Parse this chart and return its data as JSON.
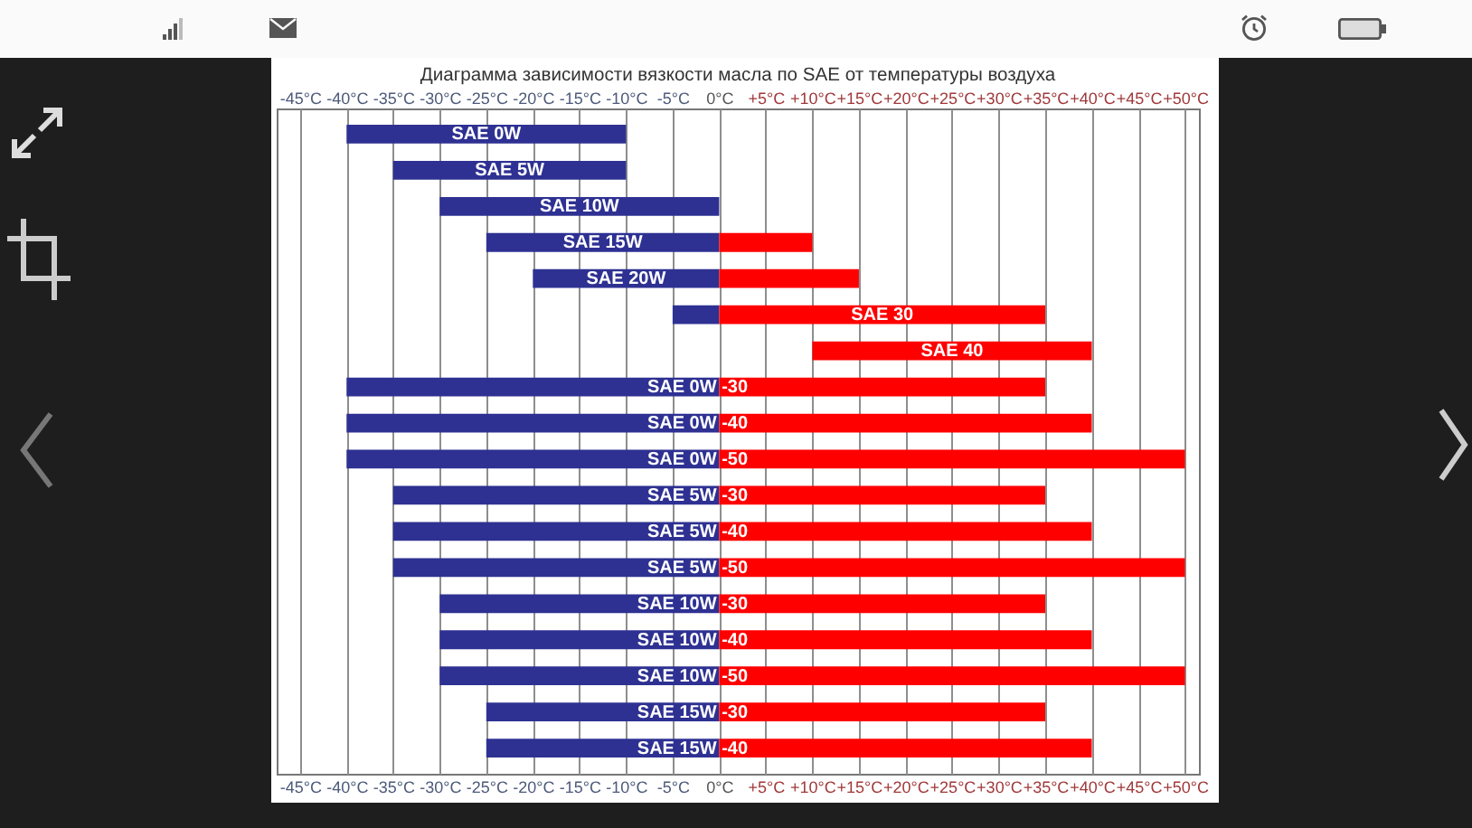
{
  "chart_data": {
    "type": "bar",
    "title": "Диаграмма зависимости вязкости масла по SAE от температуры воздуха",
    "orientation": "horizontal",
    "categories": [
      "SAE 0W",
      "SAE 5W",
      "SAE 10W",
      "SAE 15W",
      "SAE 20W",
      "SAE 30",
      "SAE 40",
      "SAE 0W -30",
      "SAE 0W -40",
      "SAE 0W -50",
      "SAE 5W -30",
      "SAE 5W -40",
      "SAE 5W -50",
      "SAE 10W -30",
      "SAE 10W -40",
      "SAE 10W -50",
      "SAE 15W -30",
      "SAE 15W -40"
    ],
    "series": [
      {
        "color": "#2e3192",
        "base": [
          -40,
          -35,
          -30,
          -25,
          -20,
          -5,
          null,
          -40,
          -40,
          -40,
          -35,
          -35,
          -35,
          -30,
          -30,
          -30,
          -25,
          -25
        ],
        "values": [
          30,
          25,
          30,
          25,
          20,
          5,
          null,
          40,
          40,
          40,
          35,
          35,
          35,
          30,
          30,
          30,
          25,
          25
        ]
      },
      {
        "color": "#ff0000",
        "base": [
          null,
          null,
          null,
          0,
          0,
          0,
          10,
          0,
          0,
          0,
          0,
          0,
          0,
          0,
          0,
          0,
          0,
          0
        ],
        "values": [
          null,
          null,
          null,
          10,
          15,
          35,
          30,
          35,
          40,
          50,
          35,
          40,
          50,
          35,
          40,
          50,
          35,
          40
        ]
      }
    ],
    "xlim": [
      -47.5,
      51.5
    ],
    "xticks": [
      {
        "value": -45,
        "label": "-45°C"
      },
      {
        "value": -40,
        "label": "-40°C"
      },
      {
        "value": -35,
        "label": "-35°C"
      },
      {
        "value": -30,
        "label": "-30°C"
      },
      {
        "value": -25,
        "label": "-25°C"
      },
      {
        "value": -20,
        "label": "-20°C"
      },
      {
        "value": -15,
        "label": "-15°C"
      },
      {
        "value": -10,
        "label": "-10°C"
      },
      {
        "value": -5,
        "label": "-5°C"
      },
      {
        "value": 0,
        "label": "0°C"
      },
      {
        "value": 5,
        "label": "+5°C"
      },
      {
        "value": 10,
        "label": "+10°C"
      },
      {
        "value": 15,
        "label": "+15°C"
      },
      {
        "value": 20,
        "label": "+20°C"
      },
      {
        "value": 25,
        "label": "+25°C"
      },
      {
        "value": 30,
        "label": "+30°C"
      },
      {
        "value": 35,
        "label": "+35°C"
      },
      {
        "value": 40,
        "label": "+40°C"
      },
      {
        "value": 45,
        "label": "+45°C"
      },
      {
        "value": 50,
        "label": "+50°C"
      }
    ],
    "x2lim": [
      -47.5,
      51.5
    ],
    "x2ticks": [
      {
        "value": -45,
        "label": "-45°C"
      },
      {
        "value": -40,
        "label": "-40°C"
      },
      {
        "value": -35,
        "label": "-35°C"
      },
      {
        "value": -30,
        "label": "-30°C"
      },
      {
        "value": -25,
        "label": "-25°C"
      },
      {
        "value": -20,
        "label": "-20°C"
      },
      {
        "value": -15,
        "label": "-15°C"
      },
      {
        "value": -10,
        "label": "-10°C"
      },
      {
        "value": -5,
        "label": "-5°C"
      },
      {
        "value": 0,
        "label": "0°C"
      },
      {
        "value": 5,
        "label": "+5°C"
      },
      {
        "value": 10,
        "label": "+10°C"
      },
      {
        "value": 15,
        "label": "+15°C"
      },
      {
        "value": 20,
        "label": "+20°C"
      },
      {
        "value": 25,
        "label": "+25°C"
      },
      {
        "value": 30,
        "label": "+30°C"
      },
      {
        "value": 35,
        "label": "+35°C"
      },
      {
        "value": 40,
        "label": "+40°C"
      },
      {
        "value": 45,
        "label": "+45°C"
      },
      {
        "value": 50,
        "label": "+50°C"
      }
    ],
    "grid": "x"
  }
}
